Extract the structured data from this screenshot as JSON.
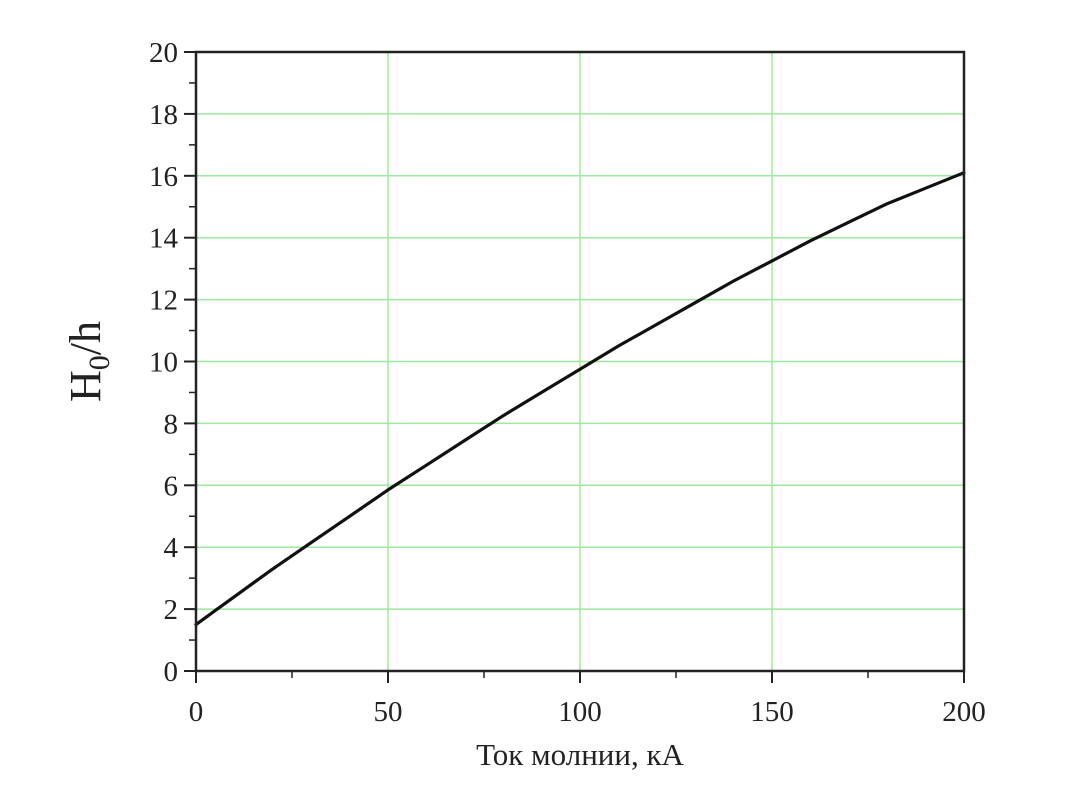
{
  "chart_data": {
    "type": "line",
    "title": "",
    "xlabel": "Ток молнии,  кА",
    "ylabel": {
      "main": "H",
      "sub": "0",
      "rest": "/h"
    },
    "xlim": [
      0,
      200
    ],
    "ylim": [
      0,
      20
    ],
    "x_ticks": [
      0,
      50,
      100,
      150,
      200
    ],
    "y_ticks": [
      0,
      2,
      4,
      6,
      8,
      10,
      12,
      14,
      16,
      18,
      20
    ],
    "x_minor_step": 25,
    "y_minor_step": 1,
    "grid": true,
    "legend": "none",
    "colors": {
      "line": "#111111",
      "grid": "#9ee89e",
      "axis": "#222222"
    },
    "series": [
      {
        "x": [
          0,
          5,
          10,
          20,
          30,
          40,
          50,
          60,
          70,
          80,
          90,
          100,
          110,
          120,
          130,
          140,
          150,
          160,
          170,
          180,
          190,
          200
        ],
        "y": [
          1.5,
          1.95,
          2.4,
          3.3,
          4.15,
          5.0,
          5.85,
          6.65,
          7.45,
          8.25,
          9.0,
          9.75,
          10.5,
          11.2,
          11.9,
          12.6,
          13.25,
          13.9,
          14.5,
          15.1,
          15.6,
          16.1
        ]
      }
    ]
  }
}
